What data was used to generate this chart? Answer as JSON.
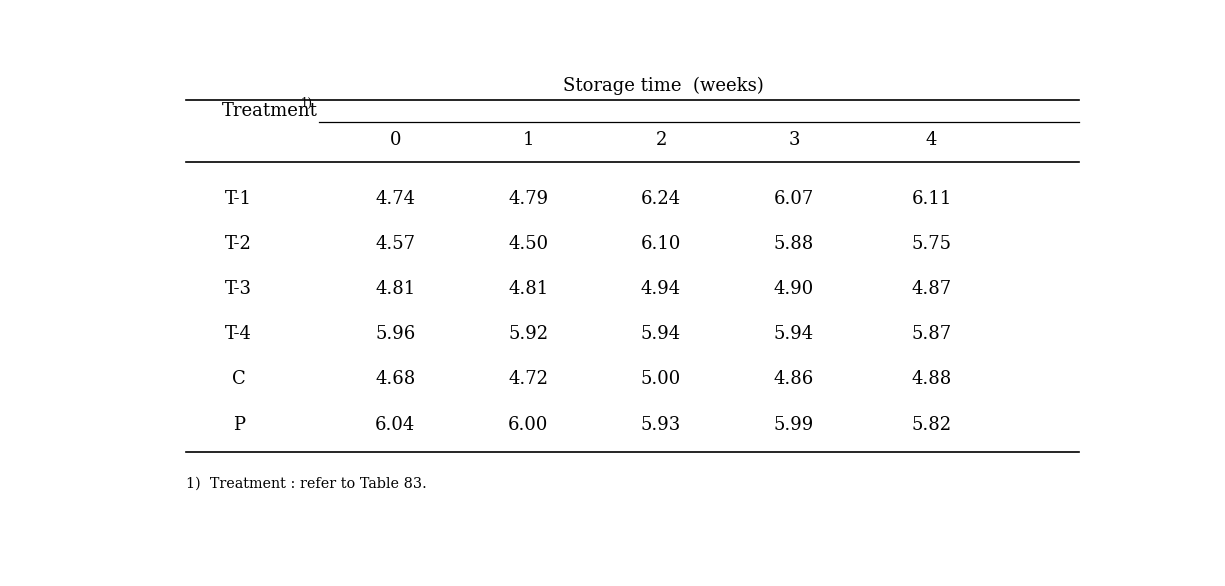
{
  "title": "Storage time  (weeks)",
  "col_header_text": "Treatment",
  "col_header_superscript": "1)",
  "storage_weeks": [
    "0",
    "1",
    "2",
    "3",
    "4"
  ],
  "treatments": [
    "T-1",
    "T-2",
    "T-3",
    "T-4",
    "C",
    "P"
  ],
  "data": {
    "T-1": [
      "4.74",
      "4.79",
      "6.24",
      "6.07",
      "6.11"
    ],
    "T-2": [
      "4.57",
      "4.50",
      "6.10",
      "5.88",
      "5.75"
    ],
    "T-3": [
      "4.81",
      "4.81",
      "4.94",
      "4.90",
      "4.87"
    ],
    "T-4": [
      "5.96",
      "5.92",
      "5.94",
      "5.94",
      "5.87"
    ],
    "C": [
      "4.68",
      "4.72",
      "5.00",
      "4.86",
      "4.88"
    ],
    "P": [
      "6.04",
      "6.00",
      "5.93",
      "5.99",
      "5.82"
    ]
  },
  "footnote": "1)  Treatment : refer to Table 83.",
  "background_color": "#ffffff",
  "text_color": "#000000",
  "font_size": 13
}
